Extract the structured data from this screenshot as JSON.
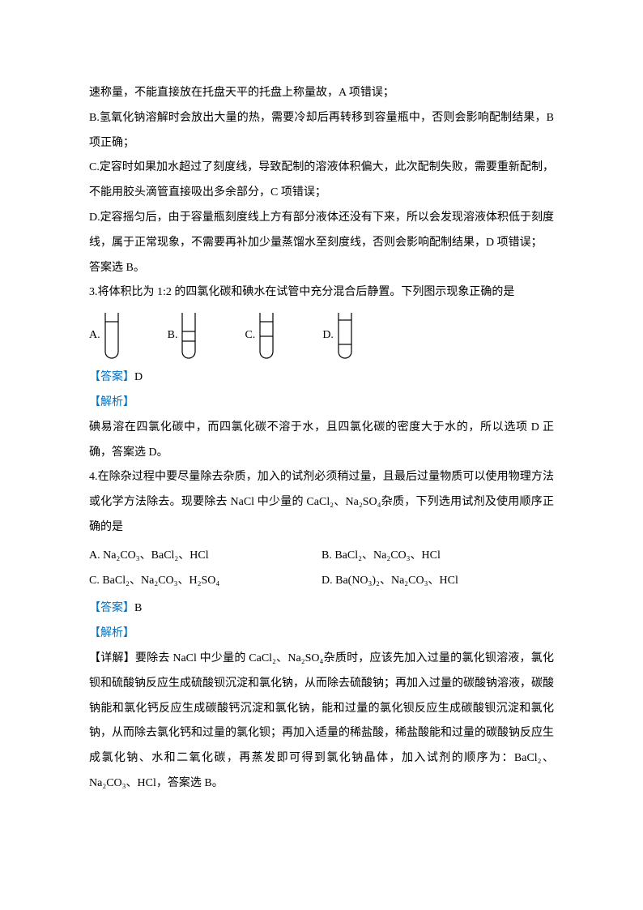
{
  "text": {
    "p1": "速称量，不能直接放在托盘天平的托盘上称量故，A 项错误；",
    "p2": "B.氢氧化钠溶解时会放出大量的热，需要冷却后再转移到容量瓶中，否则会影响配制结果，B项正确；",
    "p3": "C.定容时如果加水超过了刻度线，导致配制的溶液体积偏大，此次配制失败，需要重新配制，不能用胶头滴管直接吸出多余部分，C 项错误；",
    "p4": "D.定容摇匀后，由于容量瓶刻度线上方有部分液体还没有下来，所以会发现溶液体积低于刻度线，属于正常现象，不需要再补加少量蒸馏水至刻度线，否则会影响配制结果，D 项错误；",
    "p5": "答案选 B。",
    "q3": "3.将体积比为 1:2 的四氯化碳和碘水在试管中充分混合后静置。下列图示现象正确的是",
    "q3A": "A.",
    "q3B": "B.",
    "q3C": "C.",
    "q3D": "D.",
    "ansLabel": "【答案】",
    "q3ans": "D",
    "explainLabel": "【解析】",
    "q3explain": "碘易溶在四氯化碳中，而四氯化碳不溶于水，且四氯化碳的密度大于水的，所以选项 D 正确，答案选 D。",
    "q4": "4.在除杂过程中要尽量除去杂质，加入的试剂必须稍过量，且最后过量物质可以使用物理方法或化学方法除去。现要除去 NaCl 中少量的 CaCl₂、Na₂SO₄杂质，下列选用试剂及使用顺序正确的是",
    "q4A": "A. Na₂CO₃、BaCl₂、HCl",
    "q4B": "B. BaCl₂、Na₂CO₃、HCl",
    "q4C": "C. BaCl₂、Na₂CO₃、H₂SO₄",
    "q4D": "D. Ba(NO₃)₂、Na₂CO₃、HCl",
    "q4ans": "B",
    "q4explain": "【详解】要除去 NaCl 中少量的 CaCl₂、Na₂SO₄杂质时，应该先加入过量的氯化钡溶液，氯化钡和硫酸钠反应生成硫酸钡沉淀和氯化钠，从而除去硫酸钠；再加入过量的碳酸钠溶液，碳酸钠能和氯化钙反应生成碳酸钙沉淀和氯化钠，能和过量的氯化钡反应生成碳酸钡沉淀和氯化钠，从而除去氯化钙和过量的氯化钡；再加入适量的稀盐酸，稀盐酸能和过量的碳酸钠反应生成氯化钠、水和二氧化碳，再蒸发即可得到氯化钠晶体，加入试剂的顺序为：BaCl₂、Na₂CO₃、HCl，答案选 B。"
  },
  "tubes": {
    "width": 18,
    "height": 58,
    "stroke": "#000000",
    "strokeWidth": 1.2,
    "A": {
      "lines": [
        12
      ]
    },
    "B": {
      "lines": [
        24,
        36
      ]
    },
    "C": {
      "lines": [
        12,
        30
      ]
    },
    "D": {
      "lines": [
        10,
        40
      ]
    }
  },
  "colors": {
    "accent": "#0070c0",
    "text": "#000000",
    "bg": "#ffffff"
  }
}
